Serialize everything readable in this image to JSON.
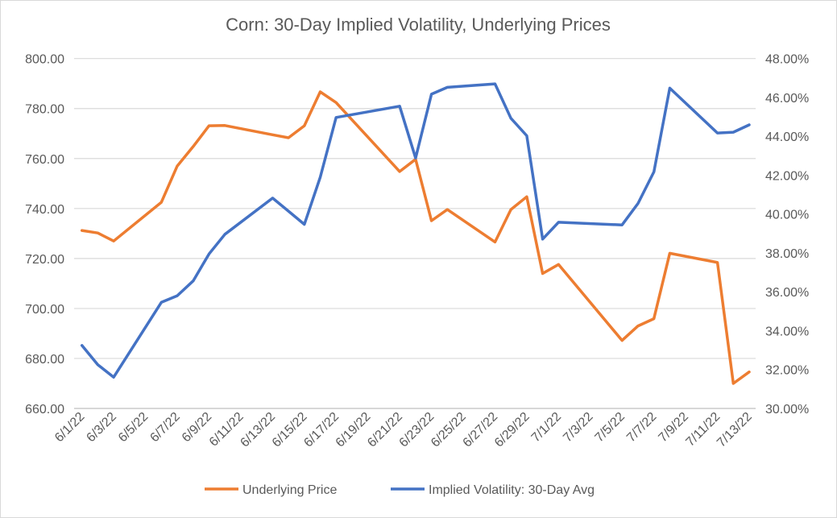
{
  "chart_data": {
    "type": "line",
    "title": "Corn: 30-Day Implied Volatility, Underlying Prices",
    "x": [
      "2022-06-01",
      "2022-06-02",
      "2022-06-03",
      "2022-06-06",
      "2022-06-07",
      "2022-06-08",
      "2022-06-09",
      "2022-06-10",
      "2022-06-13",
      "2022-06-14",
      "2022-06-15",
      "2022-06-16",
      "2022-06-17",
      "2022-06-21",
      "2022-06-22",
      "2022-06-23",
      "2022-06-24",
      "2022-06-27",
      "2022-06-28",
      "2022-06-29",
      "2022-06-30",
      "2022-07-01",
      "2022-07-05",
      "2022-07-06",
      "2022-07-07",
      "2022-07-08",
      "2022-07-11",
      "2022-07-12",
      "2022-07-13"
    ],
    "x_tick_labels": [
      "6/1/22",
      "6/3/22",
      "6/5/22",
      "6/7/22",
      "6/9/22",
      "6/11/22",
      "6/13/22",
      "6/15/22",
      "6/17/22",
      "6/19/22",
      "6/21/22",
      "6/23/22",
      "6/25/22",
      "6/27/22",
      "6/29/22",
      "7/1/22",
      "7/3/22",
      "7/5/22",
      "7/7/22",
      "7/9/22",
      "7/11/22",
      "7/13/22"
    ],
    "xlim": [
      "2022-06-01",
      "2022-07-13"
    ],
    "y_left": {
      "lim": [
        660,
        800
      ],
      "ticks": [
        "660.00",
        "680.00",
        "700.00",
        "720.00",
        "740.00",
        "760.00",
        "780.00",
        "800.00"
      ]
    },
    "y_right": {
      "lim": [
        30,
        48
      ],
      "ticks": [
        "30.00%",
        "32.00%",
        "34.00%",
        "36.00%",
        "38.00%",
        "40.00%",
        "42.00%",
        "44.00%",
        "46.00%",
        "48.00%"
      ]
    },
    "grid": true,
    "legend_position": "bottom",
    "series": [
      {
        "name": "Underlying Price",
        "axis": "left",
        "color": "#ED7D31",
        "values": [
          731.2,
          730.2,
          727.0,
          742.5,
          757.0,
          764.8,
          773.1,
          773.2,
          769.5,
          768.3,
          773.1,
          786.7,
          782.4,
          754.8,
          759.7,
          735.1,
          739.6,
          726.6,
          739.6,
          744.7,
          714.0,
          717.6,
          687.2,
          693.0,
          695.9,
          722.1,
          718.4,
          670.0,
          674.6
        ]
      },
      {
        "name": "Implied Volatility: 30-Day Avg",
        "axis": "right",
        "color": "#4472C4",
        "values": [
          33.24,
          32.25,
          31.61,
          35.46,
          35.8,
          36.56,
          37.95,
          38.96,
          40.82,
          40.15,
          39.47,
          41.89,
          44.97,
          45.55,
          42.88,
          46.17,
          46.52,
          46.7,
          44.93,
          44.03,
          38.71,
          39.58,
          39.44,
          40.55,
          42.17,
          46.48,
          44.17,
          44.21,
          44.59
        ]
      }
    ]
  }
}
